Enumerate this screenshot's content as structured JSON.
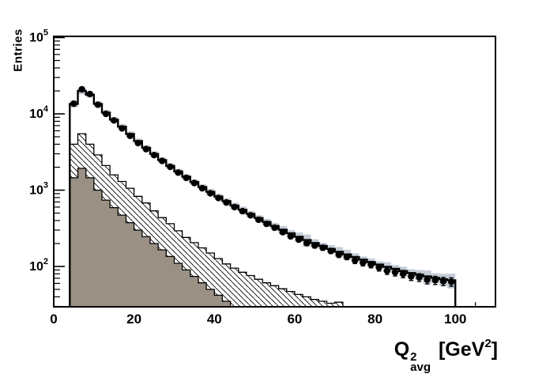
{
  "y_axis": {
    "title": "Entries",
    "scale": "log",
    "major_tick_exponents": [
      2,
      3,
      4,
      5
    ],
    "min": 29,
    "max": 110000
  },
  "x_axis": {
    "min": 0,
    "max": 110,
    "major_ticks": [
      0,
      20,
      40,
      60,
      80,
      100
    ],
    "minor_step": 5,
    "title": {
      "base": "Q",
      "sup": "2",
      "sub": "avg",
      "unit_open": " [GeV",
      "unit_sup": "2",
      "unit_close": "]"
    }
  },
  "colors": {
    "background": "#ffffff",
    "frame": "#000000",
    "band": "#c5ccd5",
    "taupe_fill": "#9a9184",
    "line": "#000000"
  },
  "chart_data": {
    "type": "bar",
    "subtype": "stepped-histograms-log-y",
    "title": "",
    "xlabel": "Q^2_avg [GeV^2]",
    "ylabel": "Entries",
    "xlim": [
      0,
      110
    ],
    "ylim": [
      29,
      110000
    ],
    "bin_start": 4,
    "bin_width": 2,
    "series": [
      {
        "name": "data-points",
        "style": "black filled circles with sqrt(N) error bars",
        "n_bins": 48,
        "values": [
          13600,
          21000,
          18200,
          13200,
          10000,
          8200,
          6450,
          5150,
          4150,
          3450,
          2880,
          2420,
          2020,
          1700,
          1450,
          1240,
          1060,
          910,
          790,
          690,
          600,
          530,
          468,
          410,
          362,
          322,
          282,
          248,
          225,
          202,
          188,
          176,
          160,
          143,
          134,
          120,
          112,
          106,
          97,
          88,
          84,
          80,
          74,
          72,
          67,
          66,
          64,
          63
        ]
      },
      {
        "name": "total-mc",
        "style": "black step line, white fill",
        "n_bins": 48,
        "values": [
          13500,
          20000,
          17800,
          13500,
          10400,
          8400,
          6800,
          5450,
          4400,
          3600,
          2980,
          2480,
          2080,
          1760,
          1500,
          1280,
          1100,
          950,
          825,
          720,
          630,
          555,
          490,
          432,
          383,
          340,
          303,
          272,
          245,
          222,
          203,
          186,
          170,
          156,
          144,
          133,
          123,
          114,
          106,
          99,
          93,
          87,
          82,
          78,
          74,
          71,
          68,
          66
        ]
      },
      {
        "name": "uncertainty-band",
        "style": "light gray boxes around total-mc",
        "color": "#c5ccd5",
        "n_bins": 48,
        "rel_half_width": [
          0.1,
          0.1,
          0.08,
          0.08,
          0.08,
          0.08,
          0.08,
          0.08,
          0.08,
          0.08,
          0.08,
          0.08,
          0.08,
          0.08,
          0.08,
          0.08,
          0.09,
          0.1,
          0.09,
          0.09,
          0.09,
          0.1,
          0.09,
          0.09,
          0.1,
          0.1,
          0.12,
          0.1,
          0.14,
          0.18,
          0.12,
          0.1,
          0.12,
          0.15,
          0.15,
          0.12,
          0.1,
          0.12,
          0.1,
          0.15,
          0.12,
          0.14,
          0.12,
          0.15,
          0.2,
          0.15,
          0.18,
          0.22
        ]
      },
      {
        "name": "hatched-mc",
        "style": "white fill with backslash diagonal hatching, black outline",
        "n_bins": 34,
        "values": [
          4000,
          5500,
          4000,
          2900,
          2100,
          1590,
          1300,
          1060,
          830,
          680,
          535,
          437,
          364,
          293,
          240,
          205,
          175,
          150,
          127,
          108,
          95,
          84,
          76,
          68,
          61,
          56,
          51,
          47,
          43,
          40,
          37,
          35,
          33,
          34
        ]
      },
      {
        "name": "filled-mc",
        "style": "solid taupe-gray fill, black outline",
        "color": "#9a9184",
        "n_bins": 20,
        "values": [
          1450,
          1930,
          1450,
          1000,
          740,
          590,
          470,
          375,
          300,
          245,
          200,
          165,
          135,
          110,
          90,
          74,
          61,
          50,
          42,
          35
        ]
      }
    ]
  }
}
